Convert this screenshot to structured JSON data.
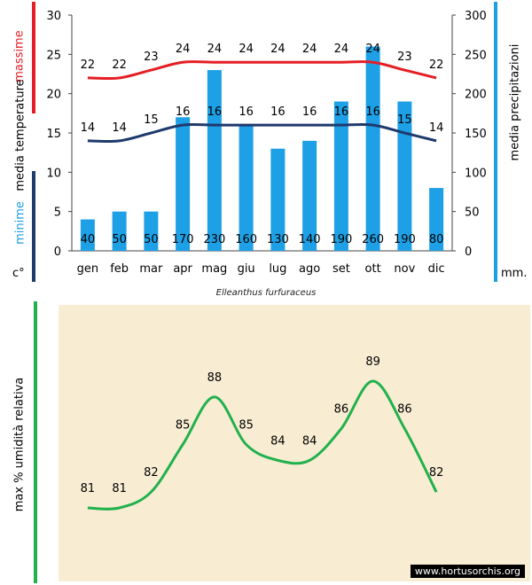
{
  "colors": {
    "max_line": "#e41e25",
    "min_line": "#1f3a6d",
    "bars": "#1ea0e6",
    "humidity": "#22b14c",
    "bg": "#f8edd3"
  },
  "labels": {
    "massime": "massime",
    "media_temperature": "media  temperature",
    "minime": "minime",
    "celsius": "c°",
    "media_precipitazioni": "media  precipitazioni",
    "mm": "mm.",
    "species": "Elleanthus furfuraceus",
    "humidity_axis": "max  % umidità relativa",
    "credit": "www.hortusorchis.org"
  },
  "chart_data": [
    {
      "type": "bar+line",
      "categories": [
        "gen",
        "feb",
        "mar",
        "apr",
        "mag",
        "giu",
        "lug",
        "ago",
        "set",
        "ott",
        "nov",
        "dic"
      ],
      "y_left": {
        "range": [
          0,
          30
        ],
        "ticks": [
          0,
          5,
          10,
          15,
          20,
          25,
          30
        ]
      },
      "y_right": {
        "range": [
          0,
          300
        ],
        "ticks": [
          0,
          50,
          100,
          150,
          200,
          250,
          300
        ]
      },
      "series": [
        {
          "kind": "bar",
          "axis": "right",
          "values": [
            40,
            50,
            50,
            170,
            230,
            160,
            130,
            140,
            190,
            260,
            190,
            80
          ]
        },
        {
          "kind": "line",
          "axis": "left",
          "values": [
            22,
            22,
            23,
            24,
            24,
            24,
            24,
            24,
            24,
            24,
            23,
            22
          ]
        },
        {
          "kind": "line",
          "axis": "left",
          "values": [
            14,
            14,
            15,
            16,
            16,
            16,
            16,
            16,
            16,
            16,
            15,
            14
          ]
        }
      ]
    },
    {
      "type": "line",
      "categories": [
        "gen",
        "feb",
        "mar",
        "apr",
        "mag",
        "giu",
        "lug",
        "ago",
        "set",
        "ott",
        "nov",
        "dic"
      ],
      "values": [
        81,
        81,
        82,
        85,
        88,
        85,
        84,
        84,
        86,
        89,
        86,
        82
      ]
    }
  ]
}
